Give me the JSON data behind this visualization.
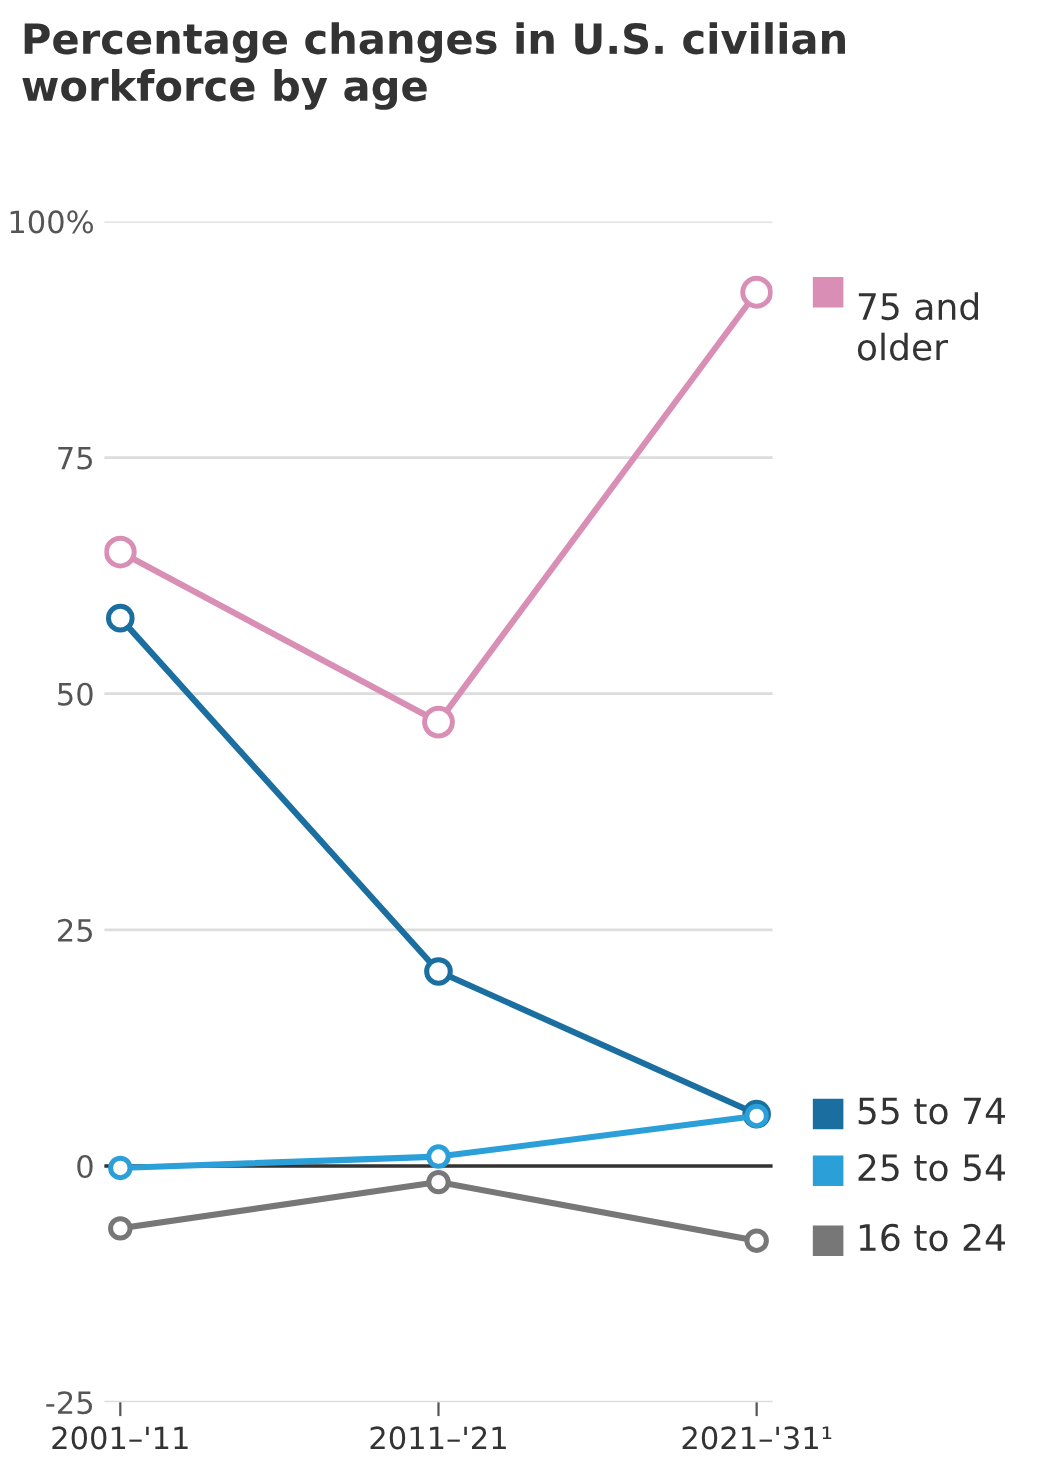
{
  "chart_data": {
    "type": "line",
    "title": "Percentage changes in U.S. civilian workforce by age",
    "categories": [
      "2001–'11",
      "2011–'21",
      "2021–'31¹"
    ],
    "series": [
      {
        "name": "75 and older",
        "color": "#d98fb5",
        "values": [
          65,
          47,
          92.5
        ]
      },
      {
        "name": "55 to 74",
        "color": "#1a6fa0",
        "values": [
          58,
          20.6,
          5.5
        ]
      },
      {
        "name": "25 to 54",
        "color": "#2a9fd8",
        "values": [
          -0.2,
          1,
          5.3
        ]
      },
      {
        "name": "16 to 24",
        "color": "#777777",
        "values": [
          -6.6,
          -1.7,
          -7.9
        ]
      }
    ],
    "ylim": [
      -25,
      100
    ],
    "yticks": [
      -25,
      0,
      25,
      50,
      {
        "value": 100,
        "label": "100%"
      },
      75
    ],
    "ref_lines": [
      {
        "axis": "y",
        "value": 0,
        "color": "#333333"
      }
    ],
    "grid": "y",
    "legend": "right",
    "marker": "circle",
    "line_style": "solid"
  }
}
